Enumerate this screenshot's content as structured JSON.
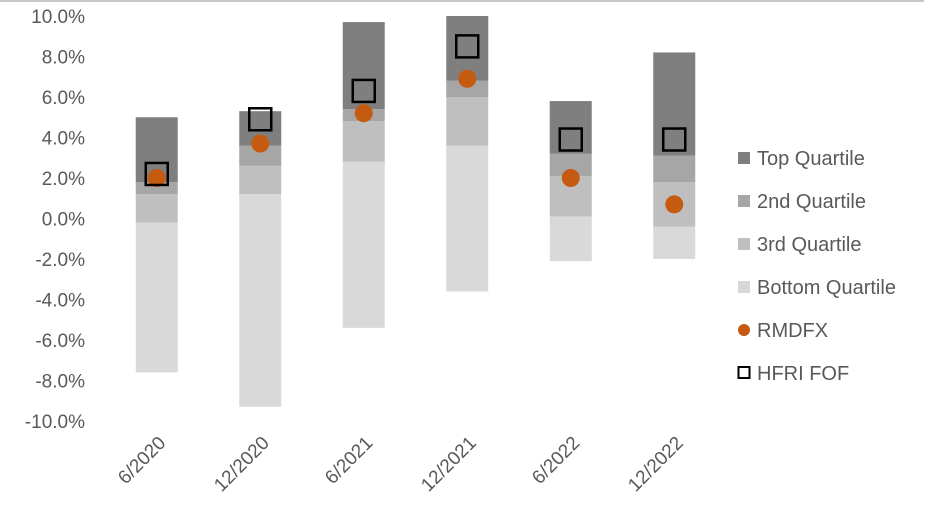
{
  "chart_data": {
    "type": "bar",
    "categories": [
      "6/2020",
      "12/2020",
      "6/2021",
      "12/2021",
      "6/2022",
      "12/2022"
    ],
    "ylim": [
      -10,
      10
    ],
    "ytick_step": 2,
    "ytick_labels": [
      "10.0%",
      "8.0%",
      "6.0%",
      "4.0%",
      "2.0%",
      "0.0%",
      "-2.0%",
      "-4.0%",
      "-6.0%",
      "-8.0%",
      "-10.0%"
    ],
    "grid": false,
    "legend_position": "right",
    "stacked_bands": [
      {
        "name": "Bottom Quartile",
        "color": "#d9d9d9",
        "ranges": [
          [
            -7.6,
            -0.2
          ],
          [
            -9.3,
            1.2
          ],
          [
            -5.4,
            2.8
          ],
          [
            -3.6,
            3.6
          ],
          [
            -2.1,
            0.1
          ],
          [
            -2.0,
            -0.4
          ]
        ]
      },
      {
        "name": "3rd Quartile",
        "color": "#bfbfbf",
        "ranges": [
          [
            -0.2,
            1.2
          ],
          [
            1.2,
            2.6
          ],
          [
            2.8,
            4.8
          ],
          [
            3.6,
            6.0
          ],
          [
            0.1,
            2.1
          ],
          [
            -0.4,
            1.8
          ]
        ]
      },
      {
        "name": "2nd Quartile",
        "color": "#a6a6a6",
        "ranges": [
          [
            1.2,
            1.8
          ],
          [
            2.6,
            3.6
          ],
          [
            4.8,
            5.4
          ],
          [
            6.0,
            6.8
          ],
          [
            2.1,
            3.2
          ],
          [
            1.8,
            3.1
          ]
        ]
      },
      {
        "name": "Top Quartile",
        "color": "#7f7f7f",
        "ranges": [
          [
            1.8,
            5.0
          ],
          [
            3.6,
            5.3
          ],
          [
            5.4,
            9.7
          ],
          [
            6.8,
            10.0
          ],
          [
            3.2,
            5.8
          ],
          [
            3.1,
            8.2
          ]
        ]
      }
    ],
    "points": [
      {
        "name": "RMDFX",
        "marker": "circle",
        "color": "#c55a11",
        "values": [
          2.0,
          3.7,
          5.2,
          6.9,
          2.0,
          0.7
        ]
      },
      {
        "name": "HFRI FOF",
        "marker": "square-open",
        "color": "#000000",
        "values": [
          2.2,
          4.9,
          6.3,
          8.5,
          3.9,
          3.9
        ]
      }
    ],
    "legend": [
      {
        "label": "Top Quartile",
        "symbol": "square",
        "color": "#7f7f7f"
      },
      {
        "label": "2nd Quartile",
        "symbol": "square",
        "color": "#a6a6a6"
      },
      {
        "label": "3rd Quartile",
        "symbol": "square",
        "color": "#bfbfbf"
      },
      {
        "label": "Bottom Quartile",
        "symbol": "square",
        "color": "#d9d9d9"
      },
      {
        "label": "RMDFX",
        "symbol": "circle",
        "color": "#c55a11"
      },
      {
        "label": "HFRI FOF",
        "symbol": "square-open",
        "color": "#000000"
      }
    ]
  }
}
